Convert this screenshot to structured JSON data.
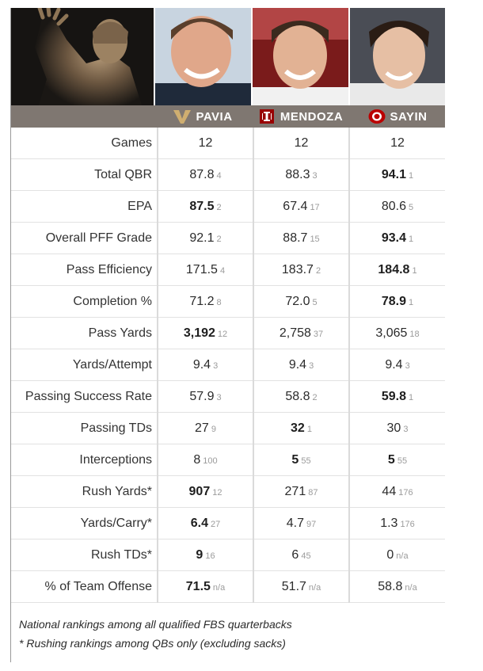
{
  "players": [
    {
      "name": "PAVIA",
      "logo": "vanderbilt-logo"
    },
    {
      "name": "MENDOZA",
      "logo": "indiana-logo"
    },
    {
      "name": "SAYIN",
      "logo": "ohio-state-logo"
    }
  ],
  "chart_data": {
    "type": "table",
    "columns": [
      "PAVIA",
      "MENDOZA",
      "SAYIN"
    ],
    "rows": [
      {
        "label": "Games",
        "cells": [
          {
            "value": "12",
            "rank": "",
            "bold": false
          },
          {
            "value": "12",
            "rank": "",
            "bold": false
          },
          {
            "value": "12",
            "rank": "",
            "bold": false
          }
        ]
      },
      {
        "label": "Total QBR",
        "cells": [
          {
            "value": "87.8",
            "rank": "4",
            "bold": false
          },
          {
            "value": "88.3",
            "rank": "3",
            "bold": false
          },
          {
            "value": "94.1",
            "rank": "1",
            "bold": true
          }
        ]
      },
      {
        "label": "EPA",
        "cells": [
          {
            "value": "87.5",
            "rank": "2",
            "bold": true
          },
          {
            "value": "67.4",
            "rank": "17",
            "bold": false
          },
          {
            "value": "80.6",
            "rank": "5",
            "bold": false
          }
        ]
      },
      {
        "label": "Overall PFF Grade",
        "cells": [
          {
            "value": "92.1",
            "rank": "2",
            "bold": false
          },
          {
            "value": "88.7",
            "rank": "15",
            "bold": false
          },
          {
            "value": "93.4",
            "rank": "1",
            "bold": true
          }
        ]
      },
      {
        "label": "Pass Efficiency",
        "cells": [
          {
            "value": "171.5",
            "rank": "4",
            "bold": false
          },
          {
            "value": "183.7",
            "rank": "2",
            "bold": false
          },
          {
            "value": "184.8",
            "rank": "1",
            "bold": true
          }
        ]
      },
      {
        "label": "Completion %",
        "cells": [
          {
            "value": "71.2",
            "rank": "8",
            "bold": false
          },
          {
            "value": "72.0",
            "rank": "5",
            "bold": false
          },
          {
            "value": "78.9",
            "rank": "1",
            "bold": true
          }
        ]
      },
      {
        "label": "Pass Yards",
        "cells": [
          {
            "value": "3,192",
            "rank": "12",
            "bold": true
          },
          {
            "value": "2,758",
            "rank": "37",
            "bold": false
          },
          {
            "value": "3,065",
            "rank": "18",
            "bold": false
          }
        ]
      },
      {
        "label": "Yards/Attempt",
        "cells": [
          {
            "value": "9.4",
            "rank": "3",
            "bold": false
          },
          {
            "value": "9.4",
            "rank": "3",
            "bold": false
          },
          {
            "value": "9.4",
            "rank": "3",
            "bold": false
          }
        ]
      },
      {
        "label": "Passing Success Rate",
        "cells": [
          {
            "value": "57.9",
            "rank": "3",
            "bold": false
          },
          {
            "value": "58.8",
            "rank": "2",
            "bold": false
          },
          {
            "value": "59.8",
            "rank": "1",
            "bold": true
          }
        ]
      },
      {
        "label": "Passing TDs",
        "cells": [
          {
            "value": "27",
            "rank": "9",
            "bold": false
          },
          {
            "value": "32",
            "rank": "1",
            "bold": true
          },
          {
            "value": "30",
            "rank": "3",
            "bold": false
          }
        ]
      },
      {
        "label": "Interceptions",
        "cells": [
          {
            "value": "8",
            "rank": "100",
            "bold": false
          },
          {
            "value": "5",
            "rank": "55",
            "bold": true
          },
          {
            "value": "5",
            "rank": "55",
            "bold": true
          }
        ]
      },
      {
        "label": "Rush Yards*",
        "cells": [
          {
            "value": "907",
            "rank": "12",
            "bold": true
          },
          {
            "value": "271",
            "rank": "87",
            "bold": false
          },
          {
            "value": "44",
            "rank": "176",
            "bold": false
          }
        ]
      },
      {
        "label": "Yards/Carry*",
        "cells": [
          {
            "value": "6.4",
            "rank": "27",
            "bold": true
          },
          {
            "value": "4.7",
            "rank": "97",
            "bold": false
          },
          {
            "value": "1.3",
            "rank": "176",
            "bold": false
          }
        ]
      },
      {
        "label": "Rush TDs*",
        "cells": [
          {
            "value": "9",
            "rank": "16",
            "bold": true
          },
          {
            "value": "6",
            "rank": "45",
            "bold": false
          },
          {
            "value": "0",
            "rank": "n/a",
            "bold": false
          }
        ]
      },
      {
        "label": "% of Team Offense",
        "cells": [
          {
            "value": "71.5",
            "rank": "n/a",
            "bold": true
          },
          {
            "value": "51.7",
            "rank": "n/a",
            "bold": false
          },
          {
            "value": "58.8",
            "rank": "n/a",
            "bold": false
          }
        ]
      }
    ]
  },
  "notes": [
    "National rankings among all qualified FBS quarterbacks",
    "* Rushing rankings among QBs only (excluding sacks)"
  ],
  "colors": {
    "header_bar": "#7f7771",
    "vanderbilt_gold": "#cfae70",
    "indiana_crimson": "#990000",
    "ohio_state_scarlet": "#bb0000"
  }
}
